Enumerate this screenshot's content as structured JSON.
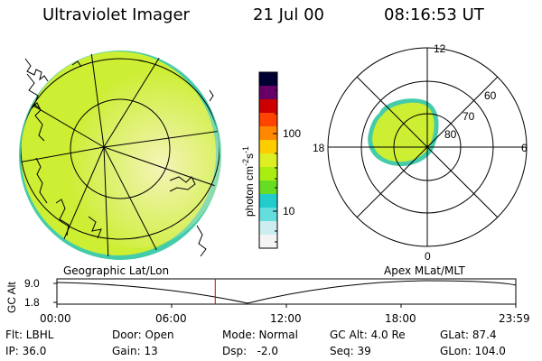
{
  "header": {
    "instrument": "Ultraviolet Imager",
    "date": "21 Jul 00",
    "time": "08:16:53 UT"
  },
  "colorbar": {
    "unit_label": "photon cm-2s-1",
    "ticks": [
      "100",
      "10"
    ],
    "colors": [
      "#000033",
      "#660066",
      "#cc0000",
      "#ff4400",
      "#ff8800",
      "#ffcc00",
      "#ddee22",
      "#aaee11",
      "#66dd22",
      "#22cccc",
      "#66dddd",
      "#cceeee",
      "#f4f4f4"
    ]
  },
  "left_map": {
    "caption": "Geographic Lat/Lon",
    "colors": {
      "fill": "#ccee33",
      "bright": "#f2f2a0",
      "edge": "#33cc99"
    }
  },
  "polar_plot": {
    "caption": "Apex MLat/MLT",
    "mlt_labels": {
      "top": "12",
      "left": "18",
      "right": "6",
      "bottom": "0"
    },
    "lat_labels": [
      "60",
      "70",
      "80"
    ]
  },
  "altitude_plot": {
    "ylabel": "GC Alt",
    "y_ticks": [
      "9.0",
      "1.8"
    ],
    "x_ticks": [
      "00:00",
      "06:00",
      "12:00",
      "18:00",
      "23:59"
    ],
    "current_time_marker_color": "#cc0000",
    "marker_fraction_of_day": 0.345
  },
  "info": {
    "filter": "Flt: LBHL",
    "ip": "IP: 36.0",
    "door": "Door: Open",
    "gain": "Gain: 13",
    "mode": "Mode: Normal",
    "dsp": "Dsp:   -2.0",
    "gc_alt": "GC Alt: 4.0 Re",
    "seq": "Seq: 39",
    "glat": "GLat: 87.4",
    "glon": "GLon: 104.0"
  }
}
